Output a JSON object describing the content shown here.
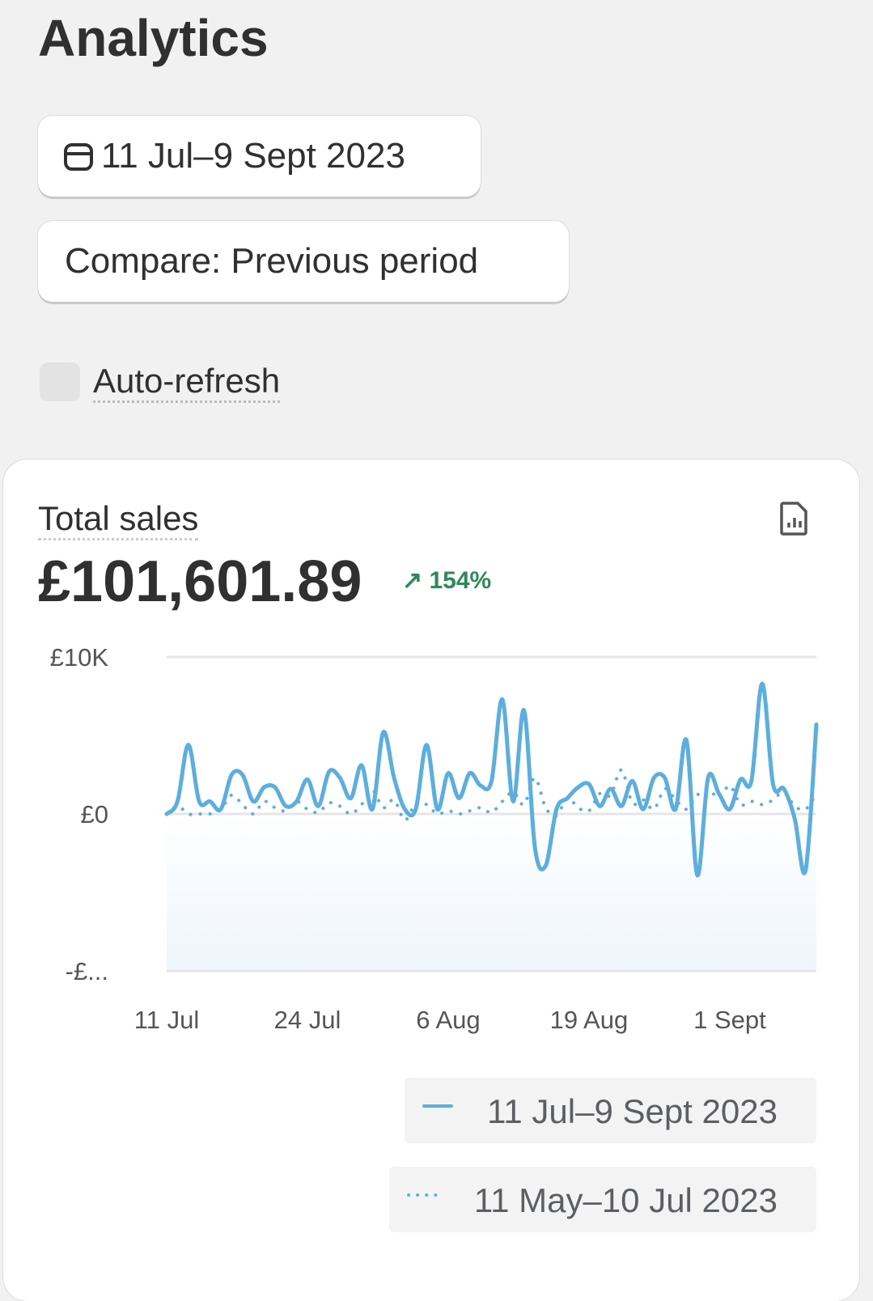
{
  "page": {
    "title": "Analytics",
    "date_range": "11 Jul–9 Sept 2023",
    "compare": "Compare: Previous period",
    "auto_refresh": "Auto-refresh"
  },
  "metric": {
    "label": "Total sales",
    "value": "£101,601.89",
    "change": "154%"
  },
  "chart_data": {
    "type": "line",
    "categories": [
      "11 Jul",
      null,
      null,
      null,
      null,
      null,
      null,
      null,
      null,
      null,
      null,
      null,
      null,
      "24 Jul",
      null,
      null,
      null,
      null,
      null,
      null,
      null,
      null,
      null,
      null,
      null,
      null,
      "6 Aug",
      null,
      null,
      null,
      null,
      null,
      null,
      null,
      null,
      null,
      null,
      null,
      null,
      "19 Aug",
      null,
      null,
      null,
      null,
      null,
      null,
      null,
      null,
      null,
      null,
      null,
      null,
      "1 Sept",
      null,
      null,
      null,
      null,
      null,
      null,
      null,
      null
    ],
    "series": [
      {
        "name": "11 Jul–9 Sept 2023",
        "color": "#5aafe0",
        "style": "solid",
        "values": [
          0,
          0.8,
          4.4,
          0.8,
          0.8,
          0.3,
          2.5,
          2.5,
          0.8,
          1.7,
          1.7,
          0.5,
          0.8,
          2.2,
          0.5,
          2.7,
          2.3,
          1.0,
          3.1,
          0.3,
          5.2,
          2.3,
          0.3,
          0.3,
          4.4,
          0.3,
          2.6,
          1.0,
          2.6,
          1.8,
          2.1,
          7.3,
          0.8,
          6.6,
          -2.1,
          -3.3,
          0.3,
          1.0,
          1.7,
          1.9,
          0.5,
          1.6,
          0.5,
          2.1,
          0.3,
          2.3,
          2.3,
          0.3,
          4.7,
          -3.9,
          2.3,
          1.3,
          0.3,
          2.2,
          2.1,
          8.3,
          1.9,
          1.6,
          -0.3,
          -3.6,
          5.7
        ]
      },
      {
        "name": "11 May–10 Jul 2023",
        "color": "#5aafe0",
        "style": "dotted",
        "values": [
          0,
          0.5,
          0,
          0,
          0,
          0.3,
          1.2,
          0.6,
          0,
          0.8,
          0.4,
          0.2,
          0.8,
          0.3,
          0.1,
          0.7,
          0.5,
          0,
          0.6,
          1.5,
          0.4,
          0.9,
          -0.4,
          0.7,
          0.6,
          0,
          0.2,
          0,
          0.2,
          0.4,
          0.1,
          0.8,
          1.4,
          0.6,
          2.3,
          0.4,
          -0.1,
          1.0,
          0.4,
          0.2,
          1.3,
          1.2,
          2.8,
          0.7,
          0.9,
          0.3,
          1.6,
          0.9,
          0.3,
          1.2,
          1.6,
          1.0,
          1.8,
          0.6,
          0.8,
          0.6,
          0.9,
          1.4,
          0.5,
          0.3,
          1.3
        ]
      }
    ],
    "ylim": [
      -10,
      10
    ],
    "yticks": [
      {
        "value": 10,
        "label": "£10K"
      },
      {
        "value": 0,
        "label": "£0"
      },
      {
        "value": -10,
        "label": "-£..."
      }
    ],
    "grid": true
  }
}
